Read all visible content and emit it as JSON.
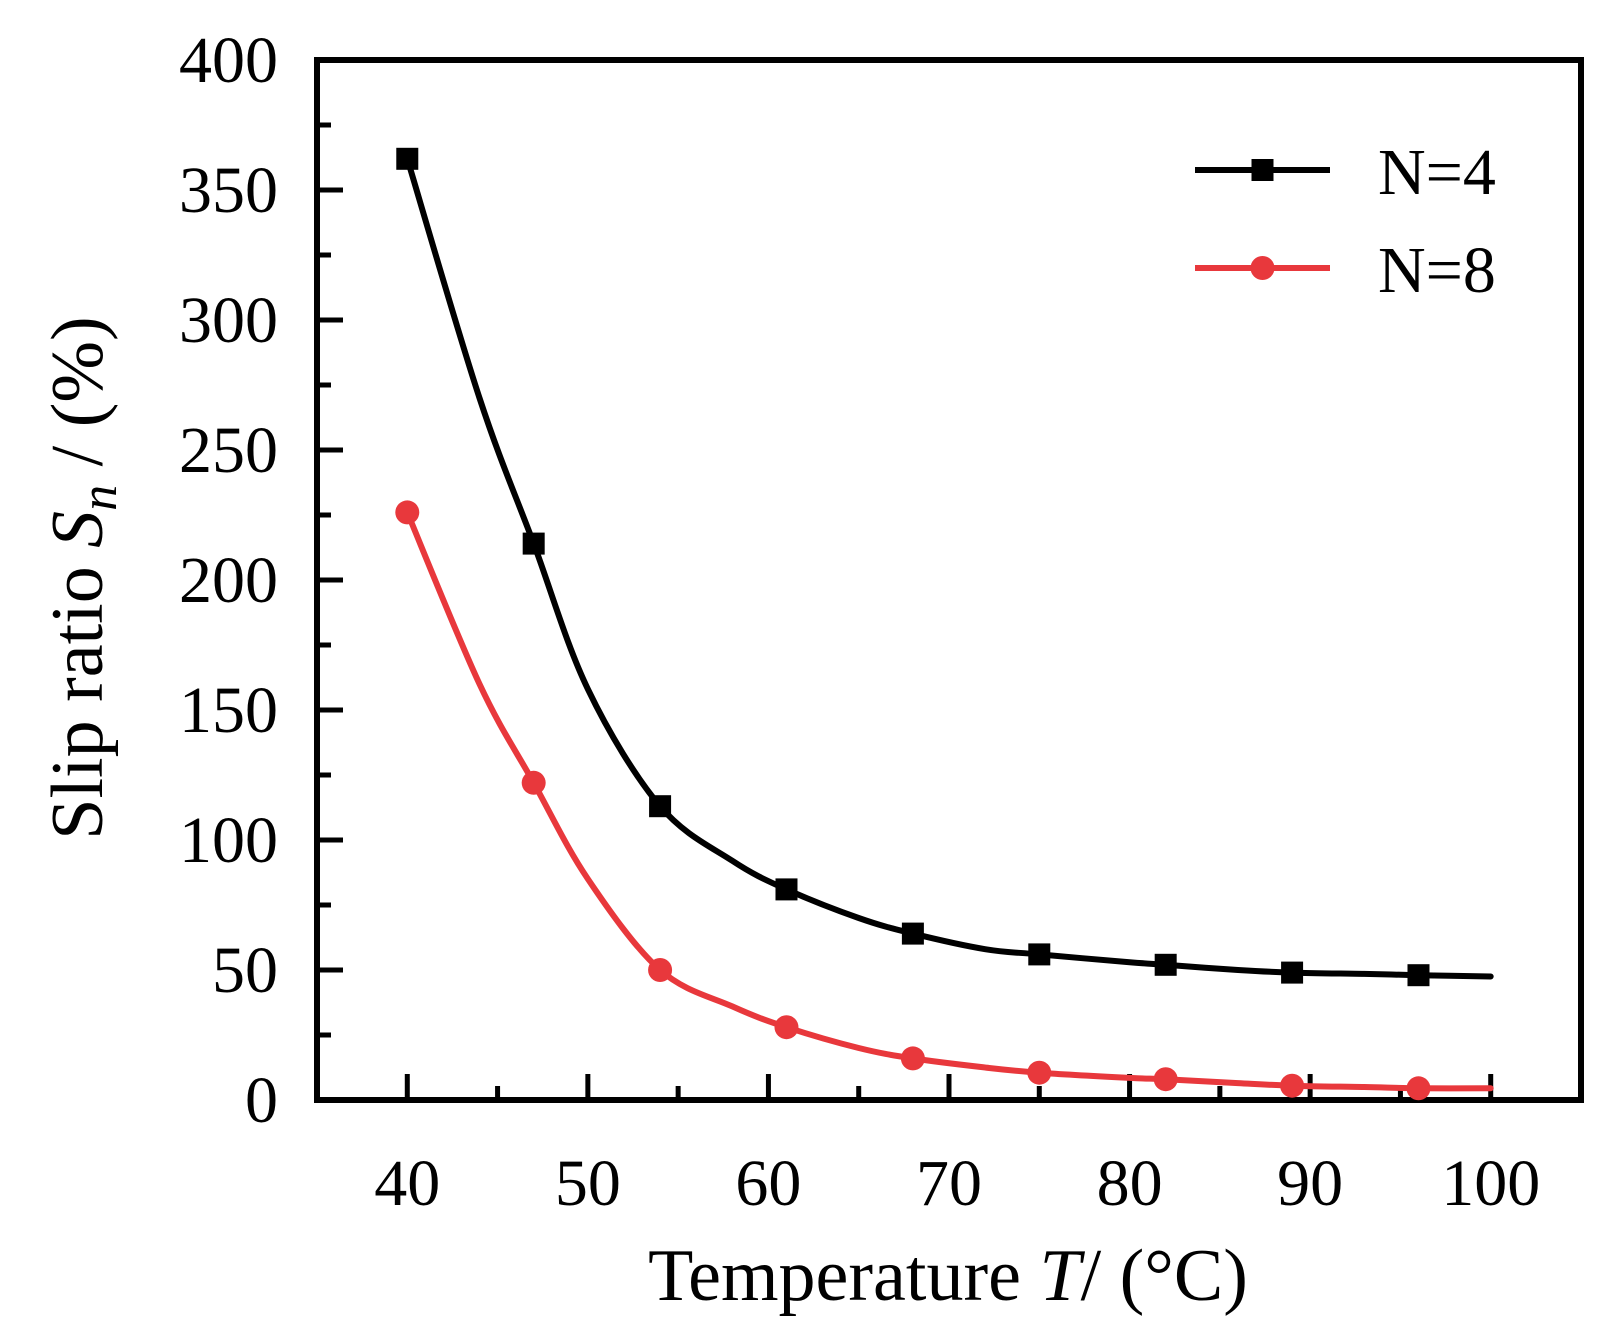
{
  "chart_data": {
    "type": "line",
    "title": "",
    "xlabel": {
      "prefix": "Temperature ",
      "var": "T",
      "suffix": "/ (°C)"
    },
    "ylabel": {
      "prefix": "Slip ratio ",
      "var": "S",
      "sub": "n",
      "suffix": " / (%)"
    },
    "xlim": [
      35,
      105
    ],
    "ylim": [
      0,
      400
    ],
    "x_ticks": [
      40,
      50,
      60,
      70,
      80,
      90,
      100
    ],
    "x_tick_labels": [
      "40",
      "50",
      "60",
      "70",
      "80",
      "90",
      "100"
    ],
    "y_ticks": [
      0,
      50,
      100,
      150,
      200,
      250,
      300,
      350,
      400
    ],
    "y_tick_labels": [
      "0",
      "50",
      "100",
      "150",
      "200",
      "250",
      "300",
      "350",
      "400"
    ],
    "x_minor_step": 5,
    "y_minor_step": 25,
    "grid": false,
    "legend_position": "top-right",
    "series": [
      {
        "name": "N=4",
        "color": "#000000",
        "marker": "square",
        "x": [
          40,
          47,
          54,
          61,
          68,
          75,
          82,
          89,
          96
        ],
        "values": [
          362,
          214,
          113,
          81,
          64,
          56,
          52,
          49,
          48
        ],
        "curve": {
          "x": [
            40,
            44,
            47,
            50,
            54,
            58,
            61,
            65,
            68,
            72,
            75,
            80,
            82,
            86,
            89,
            93,
            96,
            100
          ],
          "values": [
            362,
            270,
            214,
            158,
            113,
            92,
            81,
            70,
            64,
            58,
            56,
            53,
            52,
            50,
            49,
            48.5,
            48,
            47.5
          ]
        }
      },
      {
        "name": "N=8",
        "color": "#e8383c",
        "marker": "circle",
        "x": [
          40,
          47,
          54,
          61,
          68,
          75,
          82,
          89,
          96
        ],
        "values": [
          226,
          122,
          50,
          28,
          16,
          10.5,
          8,
          5.5,
          4.5
        ],
        "curve": {
          "x": [
            40,
            44,
            47,
            50,
            54,
            58,
            61,
            65,
            68,
            72,
            75,
            80,
            82,
            86,
            89,
            93,
            96,
            100
          ],
          "values": [
            226,
            160,
            122,
            85,
            50,
            36,
            28,
            20,
            16,
            12.5,
            10.5,
            8.5,
            8,
            6.5,
            5.5,
            5,
            4.5,
            4.5
          ]
        }
      }
    ]
  }
}
